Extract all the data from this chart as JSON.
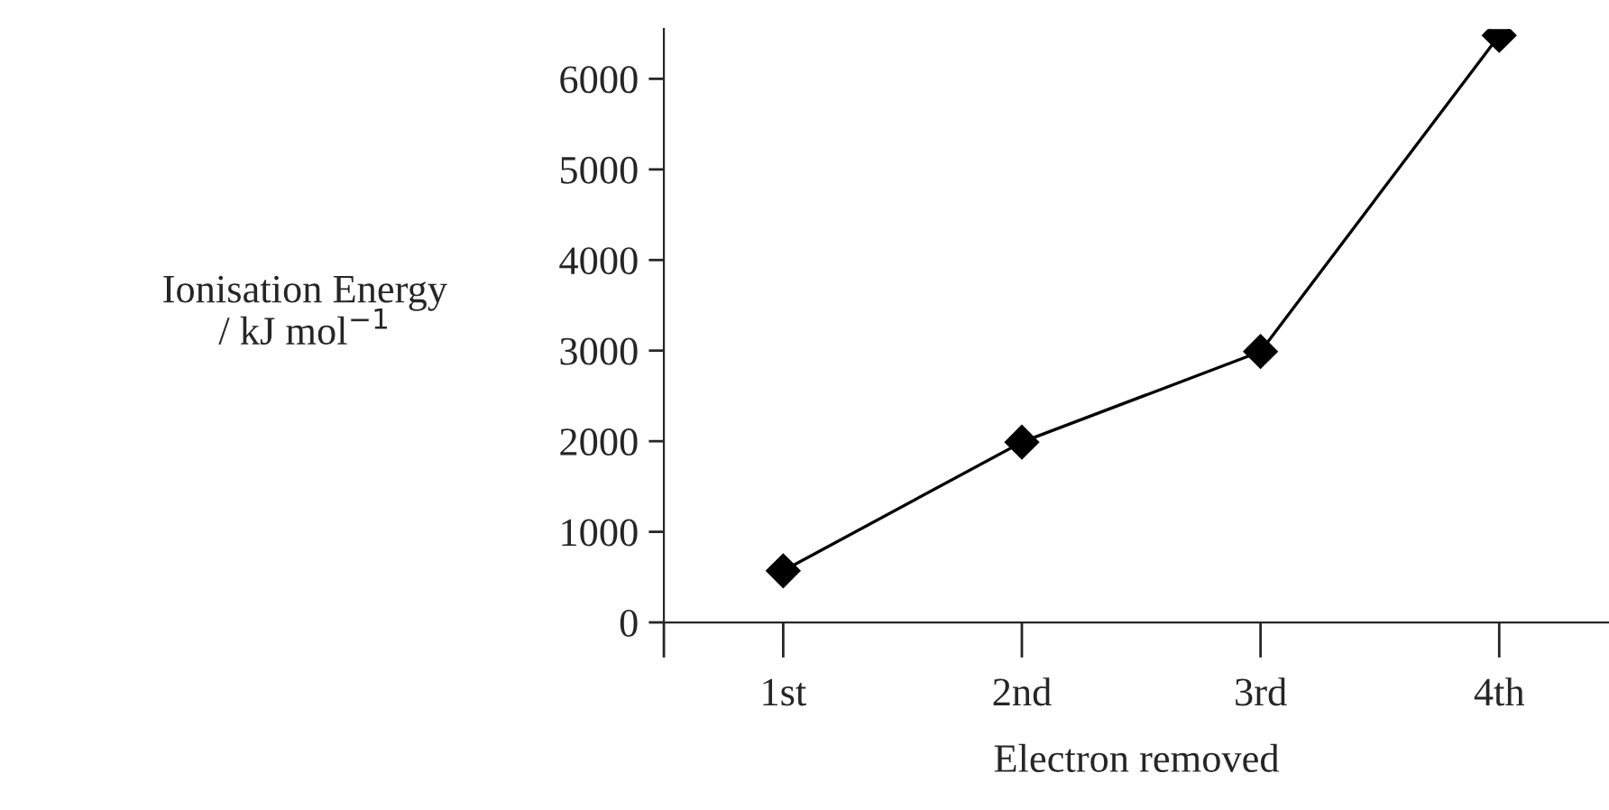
{
  "chart_data": {
    "type": "line",
    "xlabel": "Electron removed",
    "ylabel": "Ionisation Energy\n/ kJ mol$^{−1}$",
    "categories": [
      "1st",
      "2nd",
      "3rd",
      "4th"
    ],
    "series": [
      {
        "color": "#000000",
        "values": [
          570,
          1990,
          2990,
          6480
        ]
      }
    ],
    "ylim": [
      0,
      6550
    ],
    "yticks": [
      0,
      1000,
      2000,
      3000,
      4000,
      5000,
      6000
    ],
    "marker": "diamond",
    "line_style": "solid",
    "grid": false,
    "legend": false
  }
}
